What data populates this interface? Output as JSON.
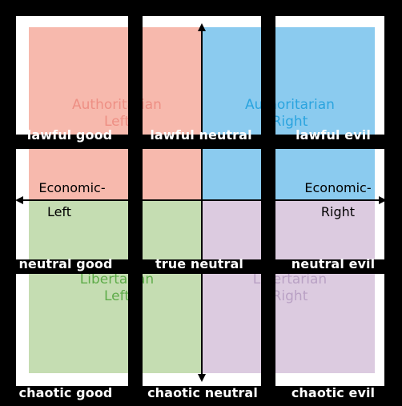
{
  "background_color": "#000000",
  "panel_color": "#ffffff",
  "quadrant_colors": {
    "authoritarian_left": "#f7b9ad",
    "authoritarian_right": "#8bcbef",
    "libertarian_left": "#c5ddb2",
    "libertarian_right": "#dccbe0"
  },
  "quadrant_text_colors": {
    "authoritarian_left": "#ee8f84",
    "authoritarian_right": "#2aa4df",
    "libertarian_left": "#5fac4a",
    "libertarian_right": "#b9a1c4"
  },
  "quadrant_labels": {
    "authoritarian_left_line1": "Authoritarian",
    "authoritarian_left_line2": "Left",
    "authoritarian_right_line1": "Authoritarian",
    "authoritarian_right_line2": "Right",
    "libertarian_left_line1": "Libertarian",
    "libertarian_left_line2": "Left",
    "libertarian_right_line1": "Libertarian",
    "libertarian_right_line2": "Right"
  },
  "axis_labels": {
    "economic_left_line1": "Economic-",
    "economic_left_line2": "Left",
    "economic_right_line1": "Economic-",
    "economic_right_line2": "Right"
  },
  "cells": [
    {
      "label": "lawful good"
    },
    {
      "label": "lawful neutral"
    },
    {
      "label": "lawful evil"
    },
    {
      "label": "neutral good"
    },
    {
      "label": "true neutral"
    },
    {
      "label": "neutral evil"
    },
    {
      "label": "chaotic good"
    },
    {
      "label": "chaotic neutral"
    },
    {
      "label": "chaotic evil"
    }
  ]
}
